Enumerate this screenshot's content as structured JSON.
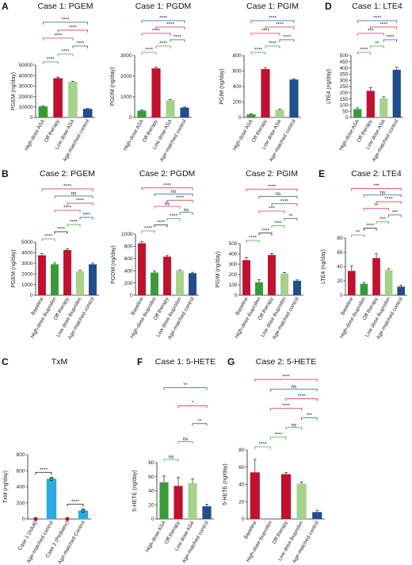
{
  "colors": {
    "red": "#c0112f",
    "green": "#3a9a3a",
    "lightgreen": "#a6d28a",
    "navy": "#1f4e8c",
    "cyan": "#2aaae0",
    "pink": "#e0317a",
    "bracket_green": "#3aa63a",
    "bracket_pink": "#e0317a",
    "bracket_red": "#d0283a",
    "bracket_blue": "#2a5aa8",
    "bracket_black": "#111111"
  },
  "chart_data": [
    {
      "id": "A1",
      "panel_label": "A",
      "type": "bar",
      "title": "Case 1: PGEM",
      "ylabel": "PGEM (ng/day)",
      "ylim": [
        0,
        50000
      ],
      "yticks": [
        0,
        10000,
        20000,
        30000,
        40000,
        50000
      ],
      "categories": [
        "High-dose ASA",
        "Off therapy",
        "Low dose ASA",
        "Age-matched control"
      ],
      "values": [
        10500,
        37500,
        34000,
        8200
      ],
      "errors": [
        400,
        1000,
        600,
        400
      ],
      "colors": [
        "green",
        "red",
        "lightgreen",
        "navy"
      ],
      "significance": [
        {
          "from": 0,
          "to": 1,
          "label": "****",
          "color": "green"
        },
        {
          "from": 1,
          "to": 2,
          "label": "****",
          "color": "green"
        },
        {
          "from": 2,
          "to": 3,
          "label": "****",
          "color": "navy"
        },
        {
          "from": 0,
          "to": 2,
          "label": "****",
          "color": "pink"
        },
        {
          "from": 1,
          "to": 3,
          "label": "****",
          "color": "red"
        },
        {
          "from": 0,
          "to": 3,
          "label": "****",
          "color": "navy"
        }
      ]
    },
    {
      "id": "A2",
      "type": "bar",
      "title": "Case 1: PGDM",
      "ylabel": "PGDM (ng/day)",
      "ylim": [
        0,
        3000
      ],
      "yticks": [
        0,
        1000,
        2000,
        3000
      ],
      "categories": [
        "High-dose ASA",
        "Off therapy",
        "Low dose ASA",
        "Age-matched control"
      ],
      "values": [
        330,
        2380,
        830,
        480
      ],
      "errors": [
        30,
        60,
        40,
        30
      ],
      "colors": [
        "green",
        "red",
        "lightgreen",
        "navy"
      ],
      "significance": [
        {
          "from": 0,
          "to": 1,
          "label": "****",
          "color": "green"
        },
        {
          "from": 1,
          "to": 2,
          "label": "****",
          "color": "green"
        },
        {
          "from": 2,
          "to": 3,
          "label": "****",
          "color": "navy"
        },
        {
          "from": 0,
          "to": 2,
          "label": "****",
          "color": "pink"
        },
        {
          "from": 1,
          "to": 3,
          "label": "****",
          "color": "red"
        },
        {
          "from": 0,
          "to": 3,
          "label": "****",
          "color": "navy"
        }
      ]
    },
    {
      "id": "A3",
      "type": "bar",
      "title": "Case 1: PGIM",
      "ylabel": "PGIM (ng/day)",
      "ylim": [
        0,
        800
      ],
      "yticks": [
        0,
        200,
        400,
        600,
        800
      ],
      "categories": [
        "High-dose ASA",
        "Off therapy",
        "Low dose ASA",
        "Age-matched control"
      ],
      "values": [
        40,
        625,
        100,
        490
      ],
      "errors": [
        8,
        20,
        10,
        10
      ],
      "colors": [
        "green",
        "red",
        "lightgreen",
        "navy"
      ],
      "significance": [
        {
          "from": 0,
          "to": 1,
          "label": "****",
          "color": "green"
        },
        {
          "from": 1,
          "to": 2,
          "label": "****",
          "color": "green"
        },
        {
          "from": 2,
          "to": 3,
          "label": "****",
          "color": "navy"
        },
        {
          "from": 0,
          "to": 2,
          "label": "****",
          "color": "pink"
        },
        {
          "from": 1,
          "to": 3,
          "label": "****",
          "color": "red"
        },
        {
          "from": 0,
          "to": 3,
          "label": "****",
          "color": "navy"
        }
      ]
    },
    {
      "id": "D",
      "panel_label": "D",
      "type": "bar",
      "title": "Case 1: LTE4",
      "ylabel": "LTE4 (ng/day)",
      "ylim": [
        0,
        500
      ],
      "yticks": [
        0,
        50,
        100,
        150,
        200,
        250,
        300,
        350,
        400,
        450,
        500
      ],
      "categories": [
        "High-dose ASA",
        "Off therapy",
        "Low dose ASA",
        "Age-matched control"
      ],
      "values": [
        68,
        215,
        155,
        385
      ],
      "errors": [
        10,
        25,
        12,
        20
      ],
      "colors": [
        "green",
        "red",
        "lightgreen",
        "navy"
      ],
      "significance": [
        {
          "from": 0,
          "to": 1,
          "label": "****",
          "color": "green"
        },
        {
          "from": 1,
          "to": 2,
          "label": "**",
          "color": "green"
        },
        {
          "from": 2,
          "to": 3,
          "label": "****",
          "color": "navy"
        },
        {
          "from": 0,
          "to": 2,
          "label": "***",
          "color": "pink"
        },
        {
          "from": 1,
          "to": 3,
          "label": "****",
          "color": "red"
        },
        {
          "from": 0,
          "to": 3,
          "label": "****",
          "color": "navy"
        }
      ]
    },
    {
      "id": "B1",
      "panel_label": "B",
      "type": "bar",
      "title": "Case 2: PGEM",
      "ylabel": "PGEM (ng/day)",
      "ylim": [
        0,
        5000
      ],
      "yticks": [
        0,
        1000,
        2000,
        3000,
        4000,
        5000
      ],
      "categories": [
        "Baseline",
        "High-dose ibuprofen",
        "Off therapy",
        "Low dose ibuprofen",
        "Age-matched control"
      ],
      "values": [
        3750,
        2900,
        4250,
        2250,
        2900
      ],
      "errors": [
        150,
        150,
        100,
        80,
        100
      ],
      "colors": [
        "red",
        "green",
        "red",
        "lightgreen",
        "navy"
      ],
      "significance": [
        {
          "from": 0,
          "to": 1,
          "label": "****",
          "color": "green"
        },
        {
          "from": 1,
          "to": 2,
          "label": "****",
          "color": "black"
        },
        {
          "from": 2,
          "to": 3,
          "label": "****",
          "color": "green"
        },
        {
          "from": 3,
          "to": 4,
          "label": "****",
          "color": "navy"
        },
        {
          "from": 1,
          "to": 3,
          "label": "****",
          "color": "pink"
        },
        {
          "from": 2,
          "to": 4,
          "label": "****",
          "color": "red"
        },
        {
          "from": 1,
          "to": 4,
          "label": "ns",
          "color": "navy"
        },
        {
          "from": 0,
          "to": 4,
          "label": "****",
          "color": "red"
        }
      ]
    },
    {
      "id": "B2",
      "type": "bar",
      "title": "Case 2: PGDM",
      "ylabel": "PGDM (ng/day)",
      "ylim": [
        0,
        1000
      ],
      "yticks": [
        0,
        200,
        400,
        600,
        800,
        1000
      ],
      "categories": [
        "Baseline",
        "High-dose ibuprofen",
        "Off therapy",
        "Low dose ibuprofen",
        "Age-matched control"
      ],
      "values": [
        850,
        370,
        630,
        400,
        360
      ],
      "errors": [
        30,
        30,
        20,
        15,
        15
      ],
      "colors": [
        "red",
        "green",
        "red",
        "lightgreen",
        "navy"
      ],
      "significance": [
        {
          "from": 0,
          "to": 1,
          "label": "****",
          "color": "green"
        },
        {
          "from": 1,
          "to": 2,
          "label": "****",
          "color": "black"
        },
        {
          "from": 2,
          "to": 3,
          "label": "****",
          "color": "green"
        },
        {
          "from": 3,
          "to": 4,
          "label": "ns",
          "color": "navy"
        },
        {
          "from": 1,
          "to": 3,
          "label": "ns",
          "color": "pink"
        },
        {
          "from": 2,
          "to": 4,
          "label": "****",
          "color": "red"
        },
        {
          "from": 1,
          "to": 4,
          "label": "ns",
          "color": "navy"
        },
        {
          "from": 0,
          "to": 4,
          "label": "****",
          "color": "red"
        }
      ]
    },
    {
      "id": "B3",
      "type": "bar",
      "title": "Case 2: PGIM",
      "ylabel": "PGIM (ng/day)",
      "ylim": [
        0,
        500
      ],
      "yticks": [
        0,
        100,
        200,
        300,
        400,
        500
      ],
      "categories": [
        "Baseline",
        "High-dose ibuprofen",
        "Off therapy",
        "Low dose ibuprofen",
        "Age-matched control"
      ],
      "values": [
        340,
        125,
        390,
        210,
        140
      ],
      "errors": [
        25,
        25,
        15,
        10,
        8
      ],
      "colors": [
        "red",
        "green",
        "red",
        "lightgreen",
        "navy"
      ],
      "significance": [
        {
          "from": 0,
          "to": 1,
          "label": "****",
          "color": "green"
        },
        {
          "from": 1,
          "to": 2,
          "label": "****",
          "color": "black"
        },
        {
          "from": 2,
          "to": 3,
          "label": "****",
          "color": "green"
        },
        {
          "from": 3,
          "to": 4,
          "label": "**",
          "color": "navy"
        },
        {
          "from": 1,
          "to": 3,
          "label": "***",
          "color": "pink"
        },
        {
          "from": 2,
          "to": 4,
          "label": "****",
          "color": "red"
        },
        {
          "from": 1,
          "to": 4,
          "label": "ns",
          "color": "navy"
        },
        {
          "from": 0,
          "to": 4,
          "label": "****",
          "color": "red"
        }
      ]
    },
    {
      "id": "E",
      "panel_label": "E",
      "type": "bar",
      "title": "Case 2: LTE4",
      "ylabel": "LTE4 (ng/day)",
      "ylim": [
        0,
        80
      ],
      "yticks": [
        0,
        20,
        40,
        60,
        80
      ],
      "categories": [
        "Baseline",
        "High-dose ibuprofen",
        "Off therapy",
        "Low dose ibuprofen",
        "Age-matched control"
      ],
      "values": [
        34,
        16,
        52,
        35,
        12
      ],
      "errors": [
        7,
        2,
        6,
        2,
        2
      ],
      "colors": [
        "red",
        "green",
        "red",
        "lightgreen",
        "navy"
      ],
      "significance": [
        {
          "from": 0,
          "to": 1,
          "label": "**",
          "color": "green"
        },
        {
          "from": 1,
          "to": 2,
          "label": "****",
          "color": "black"
        },
        {
          "from": 2,
          "to": 3,
          "label": "***",
          "color": "green"
        },
        {
          "from": 3,
          "to": 4,
          "label": "***",
          "color": "navy"
        },
        {
          "from": 1,
          "to": 3,
          "label": "**",
          "color": "pink"
        },
        {
          "from": 2,
          "to": 4,
          "label": "****",
          "color": "red"
        },
        {
          "from": 1,
          "to": 4,
          "label": "ns",
          "color": "navy"
        },
        {
          "from": 0,
          "to": 4,
          "label": "***",
          "color": "red"
        }
      ]
    },
    {
      "id": "C",
      "panel_label": "C",
      "type": "bar",
      "title": "TxM",
      "ylabel": "TxM (ng/day)",
      "ylim": [
        0,
        800
      ],
      "yticks": [
        0,
        200,
        400,
        600,
        800
      ],
      "categories": [
        "Case 1 (Adult)",
        "Age-matched control",
        "Case 2 (Pediatric)",
        "Age-matched Control"
      ],
      "values": [
        0,
        500,
        0,
        105
      ],
      "errors": [
        0,
        10,
        0,
        10
      ],
      "colors": [
        "red",
        "cyan",
        "red",
        "cyan"
      ],
      "dots": [
        [
          0,
          0
        ],
        [
          1,
          500
        ],
        [
          2,
          0
        ],
        [
          3,
          105
        ]
      ],
      "significance": [
        {
          "from": 0,
          "to": 1,
          "label": "****",
          "color": "black",
          "level": 580
        },
        {
          "from": 2,
          "to": 3,
          "label": "****",
          "color": "black",
          "level": 185
        }
      ]
    },
    {
      "id": "F",
      "panel_label": "F",
      "type": "bar",
      "title": "Case 1: 5-HETE",
      "ylabel": "5-HETE (ng/day)",
      "ylim": [
        0,
        80
      ],
      "yticks": [
        0,
        20,
        40,
        60,
        80
      ],
      "categories": [
        "High-dose ASA",
        "Off therapy",
        "Low dose ASA",
        "Age-matched control"
      ],
      "values": [
        52,
        47,
        51,
        18
      ],
      "errors": [
        9,
        12,
        6,
        3
      ],
      "colors": [
        "green",
        "red",
        "lightgreen",
        "navy"
      ],
      "significance": [
        {
          "from": 0,
          "to": 1,
          "label": "ns",
          "color": "green"
        },
        {
          "from": 1,
          "to": 2,
          "label": "ns",
          "color": "green"
        },
        {
          "from": 2,
          "to": 3,
          "label": "**",
          "color": "navy"
        },
        {
          "from": 1,
          "to": 3,
          "label": "*",
          "color": "red"
        },
        {
          "from": 0,
          "to": 3,
          "label": "**",
          "color": "navy"
        }
      ]
    },
    {
      "id": "G",
      "panel_label": "G",
      "type": "bar",
      "title": "Case 2: 5-HETE",
      "ylabel": "5-HETE (ng/day)",
      "ylim": [
        0,
        80
      ],
      "yticks": [
        0,
        20,
        40,
        60,
        80
      ],
      "categories": [
        "Baseline",
        "High-dose ibuprofen",
        "Off therapy",
        "Low dose ibuprofen",
        "Age-matched control"
      ],
      "values": [
        54,
        0,
        52,
        41,
        8
      ],
      "errors": [
        15,
        0,
        2,
        2,
        2
      ],
      "colors": [
        "red",
        "green",
        "red",
        "lightgreen",
        "navy"
      ],
      "significance": [
        {
          "from": 0,
          "to": 1,
          "label": "****",
          "color": "green"
        },
        {
          "from": 1,
          "to": 2,
          "label": "****",
          "color": "green"
        },
        {
          "from": 2,
          "to": 3,
          "label": "ns",
          "color": "green"
        },
        {
          "from": 3,
          "to": 4,
          "label": "***",
          "color": "navy"
        },
        {
          "from": 1,
          "to": 3,
          "label": "****",
          "color": "pink"
        },
        {
          "from": 2,
          "to": 4,
          "label": "****",
          "color": "red"
        },
        {
          "from": 1,
          "to": 4,
          "label": "ns",
          "color": "navy"
        },
        {
          "from": 0,
          "to": 4,
          "label": "****",
          "color": "red"
        }
      ]
    }
  ]
}
